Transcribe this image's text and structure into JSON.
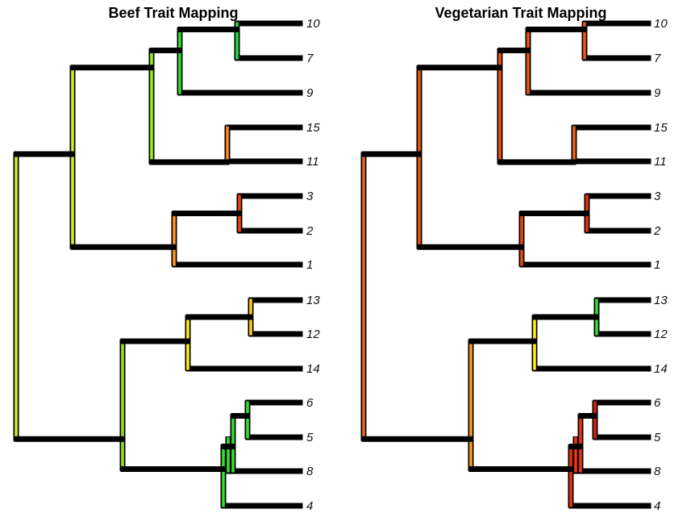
{
  "panels": [
    {
      "id": "beef",
      "title": "Beef Trait Mapping",
      "tips": [
        {
          "label": "10",
          "edge": [
            [
              "#33dd33",
              0.0
            ],
            [
              "#33dd66",
              0.25
            ],
            [
              "#33ccdd",
              0.55
            ],
            [
              "#0000aa",
              1.0
            ]
          ]
        },
        {
          "label": "7",
          "edge": [
            [
              "#33dd33",
              0.0
            ],
            [
              "#ccee00",
              0.35
            ],
            [
              "#ffcc00",
              0.6
            ],
            [
              "#ee5511",
              1.0
            ]
          ]
        },
        {
          "label": "9",
          "edge": [
            [
              "#33dd33",
              0.0
            ],
            [
              "#33dd66",
              0.4
            ],
            [
              "#33ccdd",
              0.65
            ],
            [
              "#0000aa",
              1.0
            ]
          ]
        },
        {
          "label": "15",
          "edge": [
            [
              "#ff8822",
              0.0
            ],
            [
              "#ee4411",
              0.5
            ],
            [
              "#dd1111",
              1.0
            ]
          ]
        },
        {
          "label": "11",
          "edge": [
            [
              "#ff8822",
              0.0
            ],
            [
              "#ff6622",
              0.5
            ],
            [
              "#ee4411",
              1.0
            ]
          ]
        },
        {
          "label": "3",
          "edge": [
            [
              "#ee4411",
              0.0
            ],
            [
              "#dd1111",
              1.0
            ]
          ]
        },
        {
          "label": "2",
          "edge": [
            [
              "#ee4411",
              0.0
            ],
            [
              "#ee3311",
              1.0
            ]
          ]
        },
        {
          "label": "1",
          "edge": [
            [
              "#ff9922",
              0.0
            ],
            [
              "#ff7722",
              1.0
            ]
          ]
        },
        {
          "label": "13",
          "edge": [
            [
              "#ffcc22",
              0.0
            ],
            [
              "#ffaa22",
              1.0
            ]
          ]
        },
        {
          "label": "12",
          "edge": [
            [
              "#ffbb22",
              0.0
            ],
            [
              "#ff9922",
              1.0
            ]
          ]
        },
        {
          "label": "14",
          "edge": [
            [
              "#ffee11",
              0.0
            ],
            [
              "#ffaa22",
              0.5
            ],
            [
              "#ee4411",
              1.0
            ]
          ]
        },
        {
          "label": "6",
          "edge": [
            [
              "#33dd66",
              0.0
            ],
            [
              "#33ccdd",
              0.5
            ],
            [
              "#0000aa",
              1.0
            ]
          ]
        },
        {
          "label": "5",
          "edge": [
            [
              "#33dd33",
              0.0
            ],
            [
              "#ccee00",
              0.3
            ],
            [
              "#ffcc00",
              0.55
            ],
            [
              "#dd1111",
              1.0
            ]
          ]
        },
        {
          "label": "8",
          "edge": [
            [
              "#33dd33",
              0.0
            ],
            [
              "#99ee22",
              0.5
            ],
            [
              "#ccee22",
              1.0
            ]
          ]
        },
        {
          "label": "4",
          "edge": [
            [
              "#33dd33",
              0.0
            ],
            [
              "#33dd66",
              0.3
            ],
            [
              "#33ccdd",
              0.6
            ],
            [
              "#0000aa",
              1.0
            ]
          ]
        }
      ],
      "stems": {
        "n10_7": "#22dd44",
        "n10_7_9": "#33dd33",
        "n15_11": "#ff8822",
        "nA": "#99ee22",
        "n3_2": "#ee4411",
        "n3_2_1": "#ff9922",
        "nB": "#ccee22",
        "n13_12": "#ffcc22",
        "n13_12_14": "#ffee11",
        "n6_5": "#33dd33",
        "n6_5_8": "#33dd33",
        "n6_5_8_4": "#33dd33",
        "nC": "#99dd22",
        "root": "#ccee33"
      },
      "branches": {
        "n10_7_9": [
          [
            "#33dd33",
            0.0
          ],
          [
            "#22dd44",
            1.0
          ]
        ],
        "nA": [
          [
            "#99ee22",
            0.0
          ],
          [
            "#33dd33",
            1.0
          ]
        ],
        "n15_11_to_nA": [
          [
            "#99ee22",
            0.0
          ],
          [
            "#ccee22",
            0.4
          ],
          [
            "#ffaa22",
            0.8
          ],
          [
            "#ff8822",
            1.0
          ]
        ],
        "nA_to_nB": [
          [
            "#ccee22",
            0.0
          ],
          [
            "#99ee22",
            1.0
          ]
        ],
        "n3_2_1_to_nB": [
          [
            "#ccee22",
            0.0
          ],
          [
            "#ffee00",
            0.5
          ],
          [
            "#ff9922",
            1.0
          ]
        ],
        "n3_2_to_n3_2_1": [
          [
            "#ff9922",
            0.0
          ],
          [
            "#ee4411",
            1.0
          ]
        ],
        "nB_to_root": [
          [
            "#ccee33",
            0.0
          ],
          [
            "#ccee22",
            1.0
          ]
        ],
        "nC_to_root": [
          [
            "#ccee33",
            0.0
          ],
          [
            "#99dd22",
            1.0
          ]
        ],
        "n13_12_14_to_nC": [
          [
            "#99dd22",
            0.0
          ],
          [
            "#ddee11",
            0.5
          ],
          [
            "#ffee11",
            1.0
          ]
        ],
        "n13_12_to_n13_12_14": [
          [
            "#ffee11",
            0.0
          ],
          [
            "#ffcc22",
            1.0
          ]
        ],
        "n6_5_8_4_to_nC": [
          [
            "#99dd22",
            0.0
          ],
          [
            "#33dd33",
            1.0
          ]
        ],
        "n6_5_8_to_n6_5_8_4": [
          [
            "#33dd33",
            0.0
          ],
          [
            "#33dd33",
            1.0
          ]
        ],
        "n6_5_to_n6_5_8": [
          [
            "#33dd33",
            0.0
          ],
          [
            "#33dd33",
            1.0
          ]
        ],
        "n10_7_to_n10_7_9": [
          [
            "#33dd33",
            0.0
          ],
          [
            "#22dd44",
            1.0
          ]
        ]
      }
    },
    {
      "id": "vegetarian",
      "title": "Vegetarian Trait Mapping",
      "tips": [
        {
          "label": "10",
          "edge": [
            [
              "#ee5511",
              0.0
            ],
            [
              "#ff8833",
              1.0
            ]
          ]
        },
        {
          "label": "7",
          "edge": [
            [
              "#ee5511",
              0.0
            ],
            [
              "#ee3311",
              1.0
            ]
          ]
        },
        {
          "label": "9",
          "edge": [
            [
              "#ee5511",
              0.0
            ],
            [
              "#ee3311",
              1.0
            ]
          ]
        },
        {
          "label": "15",
          "edge": [
            [
              "#ee6622",
              0.0
            ],
            [
              "#ff8833",
              1.0
            ]
          ]
        },
        {
          "label": "11",
          "edge": [
            [
              "#ee6622",
              0.0
            ],
            [
              "#ee4411",
              1.0
            ]
          ]
        },
        {
          "label": "3",
          "edge": [
            [
              "#ee3311",
              0.0
            ],
            [
              "#dd1111",
              1.0
            ]
          ]
        },
        {
          "label": "2",
          "edge": [
            [
              "#ee3311",
              0.0
            ],
            [
              "#ee4411",
              1.0
            ]
          ]
        },
        {
          "label": "1",
          "edge": [
            [
              "#ee4411",
              0.0
            ],
            [
              "#ee3311",
              1.0
            ]
          ]
        },
        {
          "label": "13",
          "edge": [
            [
              "#33dd33",
              0.0
            ],
            [
              "#33dd66",
              0.3
            ],
            [
              "#33ccdd",
              0.6
            ],
            [
              "#0000aa",
              1.0
            ]
          ]
        },
        {
          "label": "12",
          "edge": [
            [
              "#33dd33",
              0.0
            ],
            [
              "#ccee00",
              0.35
            ],
            [
              "#ffcc00",
              0.6
            ],
            [
              "#ff8822",
              1.0
            ]
          ]
        },
        {
          "label": "14",
          "edge": [
            [
              "#ffee11",
              0.0
            ],
            [
              "#ffaa22",
              0.5
            ],
            [
              "#ee4411",
              1.0
            ]
          ]
        },
        {
          "label": "6",
          "edge": [
            [
              "#dd2211",
              0.0
            ],
            [
              "#dd1111",
              1.0
            ]
          ]
        },
        {
          "label": "5",
          "edge": [
            [
              "#dd2211",
              0.0
            ],
            [
              "#dd1111",
              1.0
            ]
          ]
        },
        {
          "label": "8",
          "edge": [
            [
              "#ee3311",
              0.0
            ],
            [
              "#dd1111",
              1.0
            ]
          ]
        },
        {
          "label": "4",
          "edge": [
            [
              "#ee3311",
              0.0
            ],
            [
              "#dd1111",
              1.0
            ]
          ]
        }
      ],
      "stems": {
        "n10_7": "#ee5511",
        "n10_7_9": "#ee5511",
        "n15_11": "#ee6622",
        "nA": "#ee5511",
        "n3_2": "#ee3311",
        "n3_2_1": "#ee4411",
        "nB": "#ee5511",
        "n13_12": "#33dd33",
        "n13_12_14": "#ffee11",
        "n6_5": "#dd2211",
        "n6_5_8": "#ee3311",
        "n6_5_8_4": "#ee3311",
        "nC": "#ff9922",
        "root": "#ee6622"
      },
      "branches": {
        "n10_7_9": [
          [
            "#ee5511",
            0.0
          ],
          [
            "#ee5511",
            1.0
          ]
        ],
        "nA": [
          [
            "#ee5511",
            0.0
          ],
          [
            "#ee5511",
            1.0
          ]
        ],
        "n15_11_to_nA": [
          [
            "#ee5511",
            0.0
          ],
          [
            "#ee6622",
            1.0
          ]
        ],
        "nA_to_nB": [
          [
            "#ee5511",
            0.0
          ],
          [
            "#ee5511",
            1.0
          ]
        ],
        "n3_2_1_to_nB": [
          [
            "#ee5511",
            0.0
          ],
          [
            "#ee4411",
            1.0
          ]
        ],
        "n3_2_to_n3_2_1": [
          [
            "#ee4411",
            0.0
          ],
          [
            "#ee3311",
            1.0
          ]
        ],
        "nB_to_root": [
          [
            "#ee6622",
            0.0
          ],
          [
            "#ee5511",
            1.0
          ]
        ],
        "nC_to_root": [
          [
            "#ee6622",
            0.0
          ],
          [
            "#ff9922",
            1.0
          ]
        ],
        "n13_12_14_to_nC": [
          [
            "#ff9922",
            0.0
          ],
          [
            "#ffcc22",
            0.5
          ],
          [
            "#ffee11",
            1.0
          ]
        ],
        "n13_12_to_n13_12_14": [
          [
            "#ffee11",
            0.0
          ],
          [
            "#ccee22",
            0.5
          ],
          [
            "#33dd33",
            1.0
          ]
        ],
        "n6_5_8_4_to_nC": [
          [
            "#ff9922",
            0.0
          ],
          [
            "#ee5511",
            0.5
          ],
          [
            "#ee3311",
            1.0
          ]
        ],
        "n6_5_8_to_n6_5_8_4": [
          [
            "#ee3311",
            0.0
          ],
          [
            "#ee3311",
            1.0
          ]
        ],
        "n6_5_to_n6_5_8": [
          [
            "#ee3311",
            0.0
          ],
          [
            "#dd2211",
            1.0
          ]
        ],
        "n10_7_to_n10_7_9": [
          [
            "#ee5511",
            0.0
          ],
          [
            "#ee5511",
            1.0
          ]
        ]
      }
    }
  ]
}
